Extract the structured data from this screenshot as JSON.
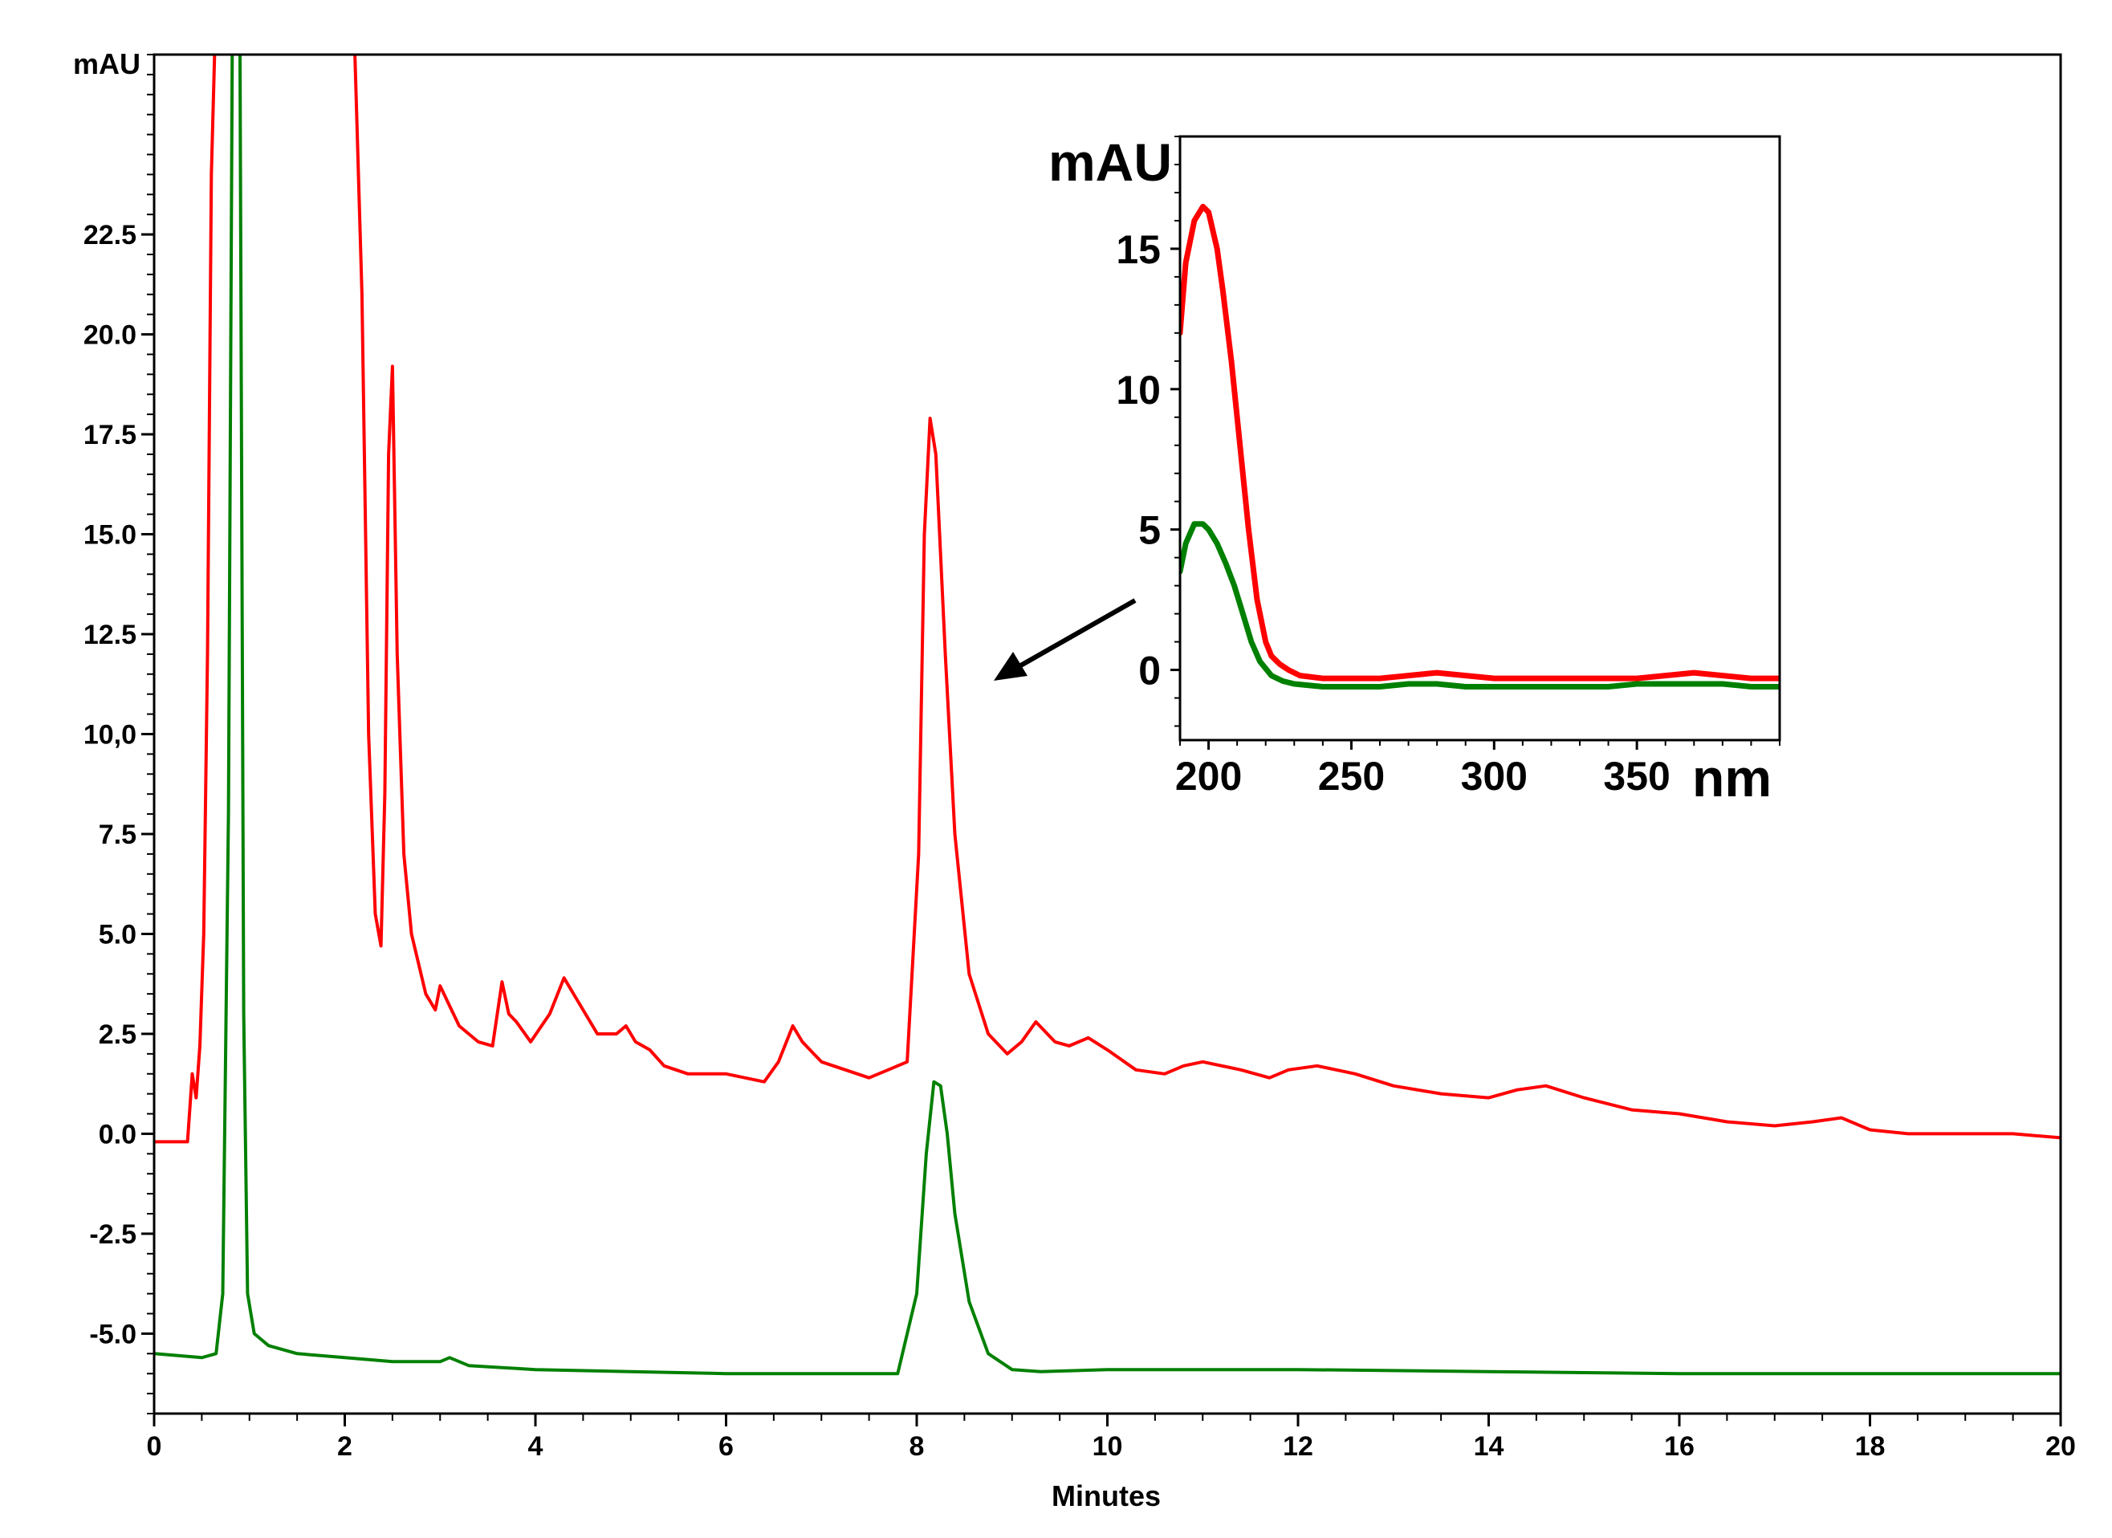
{
  "chart_data": [
    {
      "type": "line",
      "name": "chromatogram",
      "xlabel": "Minutes",
      "ylabel": "mAU",
      "xlim": [
        0,
        20
      ],
      "ylim": [
        -7.0,
        27.0
      ],
      "x_ticks": [
        0,
        2,
        4,
        6,
        8,
        10,
        12,
        14,
        16,
        18,
        20
      ],
      "x_tick_labels": [
        "0",
        "2",
        "4",
        "6",
        "8",
        "10",
        "12",
        "14",
        "16",
        "18",
        "20"
      ],
      "y_ticks": [
        -5.0,
        -2.5,
        0.0,
        2.5,
        5.0,
        7.5,
        10.0,
        12.5,
        15.0,
        17.5,
        20.0,
        22.5
      ],
      "y_tick_labels": [
        "-5.0",
        "-2.5",
        "0.0",
        "2.5",
        "5.0",
        "7.5",
        "10,0",
        "12.5",
        "15.0",
        "17.5",
        "20.0",
        "22.5"
      ],
      "grid": false,
      "series": [
        {
          "name": "red trace",
          "color": "#ff0000",
          "x": [
            0.0,
            0.35,
            0.4,
            0.44,
            0.48,
            0.52,
            0.56,
            0.6,
            0.64,
            0.7,
            2.1,
            2.18,
            2.25,
            2.32,
            2.38,
            2.42,
            2.46,
            2.5,
            2.55,
            2.62,
            2.7,
            2.85,
            2.95,
            3.0,
            3.1,
            3.2,
            3.4,
            3.55,
            3.65,
            3.72,
            3.8,
            3.95,
            4.15,
            4.3,
            4.45,
            4.65,
            4.85,
            4.95,
            5.05,
            5.2,
            5.35,
            5.6,
            6.0,
            6.4,
            6.55,
            6.7,
            6.8,
            7.0,
            7.5,
            7.7,
            7.9,
            8.02,
            8.08,
            8.14,
            8.2,
            8.3,
            8.4,
            8.55,
            8.75,
            8.95,
            9.1,
            9.25,
            9.45,
            9.6,
            9.8,
            10.0,
            10.3,
            10.6,
            10.8,
            11.0,
            11.4,
            11.7,
            11.9,
            12.2,
            12.6,
            13.0,
            13.5,
            14.0,
            14.3,
            14.6,
            15.0,
            15.5,
            16.0,
            16.5,
            17.0,
            17.4,
            17.7,
            18.0,
            18.4,
            19.0,
            19.5,
            20.0
          ],
          "y": [
            -0.2,
            -0.2,
            1.5,
            0.9,
            2.2,
            5.0,
            12.0,
            24.0,
            27.5,
            27.5,
            27.5,
            21.0,
            10.0,
            5.5,
            4.7,
            8.5,
            17.0,
            19.2,
            12.0,
            7.0,
            5.0,
            3.5,
            3.1,
            3.7,
            3.2,
            2.7,
            2.3,
            2.2,
            3.8,
            3.0,
            2.8,
            2.3,
            3.0,
            3.9,
            3.3,
            2.5,
            2.5,
            2.7,
            2.3,
            2.1,
            1.7,
            1.5,
            1.5,
            1.3,
            1.8,
            2.7,
            2.3,
            1.8,
            1.4,
            1.6,
            1.8,
            7.0,
            15.0,
            17.9,
            17.0,
            12.0,
            7.5,
            4.0,
            2.5,
            2.0,
            2.3,
            2.8,
            2.3,
            2.2,
            2.4,
            2.1,
            1.6,
            1.5,
            1.7,
            1.8,
            1.6,
            1.4,
            1.6,
            1.7,
            1.5,
            1.2,
            1.0,
            0.9,
            1.1,
            1.2,
            0.9,
            0.6,
            0.5,
            0.3,
            0.2,
            0.3,
            0.4,
            0.1,
            0.0,
            0.0,
            0.0,
            -0.1
          ]
        },
        {
          "name": "green trace",
          "color": "#008000",
          "x": [
            0.0,
            0.5,
            0.65,
            0.72,
            0.78,
            0.82,
            0.86,
            0.9,
            0.94,
            0.98,
            1.05,
            1.2,
            1.5,
            2.0,
            2.5,
            3.0,
            3.1,
            3.3,
            4.0,
            5.0,
            6.0,
            7.0,
            7.8,
            8.0,
            8.1,
            8.18,
            8.25,
            8.32,
            8.4,
            8.55,
            8.75,
            9.0,
            9.3,
            10.0,
            12.0,
            14.0,
            16.0,
            18.0,
            20.0
          ],
          "y": [
            -5.5,
            -5.6,
            -5.5,
            -4.0,
            8.0,
            27.5,
            27.5,
            27.5,
            3.0,
            -4.0,
            -5.0,
            -5.3,
            -5.5,
            -5.6,
            -5.7,
            -5.7,
            -5.6,
            -5.8,
            -5.9,
            -5.95,
            -6.0,
            -6.0,
            -6.0,
            -4.0,
            -0.5,
            1.3,
            1.2,
            0.0,
            -2.0,
            -4.2,
            -5.5,
            -5.9,
            -5.95,
            -5.9,
            -5.9,
            -5.95,
            -6.0,
            -6.0,
            -6.0
          ]
        }
      ]
    },
    {
      "type": "line",
      "name": "uv-spectrum-inset",
      "xlabel": "nm",
      "ylabel": "mAU",
      "xlim": [
        190,
        400
      ],
      "ylim": [
        -2.5,
        19.0
      ],
      "x_ticks": [
        200,
        250,
        300,
        350
      ],
      "x_tick_labels": [
        "200",
        "250",
        "300",
        "350"
      ],
      "y_ticks": [
        0,
        5,
        10,
        15
      ],
      "y_tick_labels": [
        "0",
        "5",
        "10",
        "15"
      ],
      "grid": false,
      "series": [
        {
          "name": "red spectrum",
          "color": "#ff0000",
          "x": [
            190,
            192,
            195,
            198,
            200,
            203,
            205,
            208,
            211,
            214,
            217,
            220,
            222,
            225,
            228,
            232,
            240,
            250,
            260,
            270,
            280,
            290,
            300,
            310,
            320,
            330,
            340,
            350,
            360,
            370,
            380,
            390,
            400
          ],
          "y": [
            12.0,
            14.5,
            16.0,
            16.5,
            16.3,
            15.0,
            13.5,
            11.0,
            8.0,
            5.0,
            2.5,
            1.0,
            0.5,
            0.2,
            0.0,
            -0.2,
            -0.3,
            -0.3,
            -0.3,
            -0.2,
            -0.1,
            -0.2,
            -0.3,
            -0.3,
            -0.3,
            -0.3,
            -0.3,
            -0.3,
            -0.2,
            -0.1,
            -0.2,
            -0.3,
            -0.3
          ]
        },
        {
          "name": "green spectrum",
          "color": "#008000",
          "x": [
            190,
            192,
            195,
            198,
            200,
            203,
            206,
            209,
            212,
            215,
            218,
            222,
            226,
            230,
            240,
            250,
            260,
            270,
            280,
            290,
            300,
            310,
            320,
            330,
            340,
            350,
            360,
            370,
            380,
            390,
            400
          ],
          "y": [
            3.5,
            4.5,
            5.2,
            5.2,
            5.0,
            4.5,
            3.8,
            3.0,
            2.0,
            1.0,
            0.3,
            -0.2,
            -0.4,
            -0.5,
            -0.6,
            -0.6,
            -0.6,
            -0.5,
            -0.5,
            -0.6,
            -0.6,
            -0.6,
            -0.6,
            -0.6,
            -0.6,
            -0.5,
            -0.5,
            -0.5,
            -0.5,
            -0.6,
            -0.6
          ]
        }
      ]
    }
  ]
}
